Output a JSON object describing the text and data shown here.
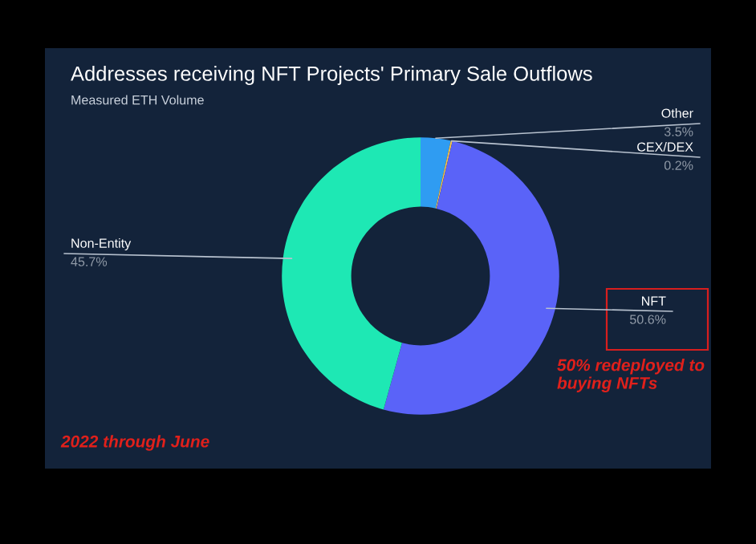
{
  "chart_data": {
    "type": "donut",
    "title": "Addresses receiving NFT Projects' Primary Sale Outflows",
    "subtitle": "Measured ETH Volume",
    "categories": [
      "Other",
      "CEX/DEX",
      "NFT",
      "Non-Entity"
    ],
    "values": [
      3.5,
      0.2,
      50.6,
      45.7
    ],
    "value_labels": [
      "3.5%",
      "0.2%",
      "50.6%",
      "45.7%"
    ],
    "colors": [
      "#2f9cf2",
      "#f2c14e",
      "#5a63f8",
      "#1ee8b4"
    ],
    "annotations": [
      "50% redeployed to buying NFTs",
      "2022 through June"
    ],
    "legend": false
  }
}
